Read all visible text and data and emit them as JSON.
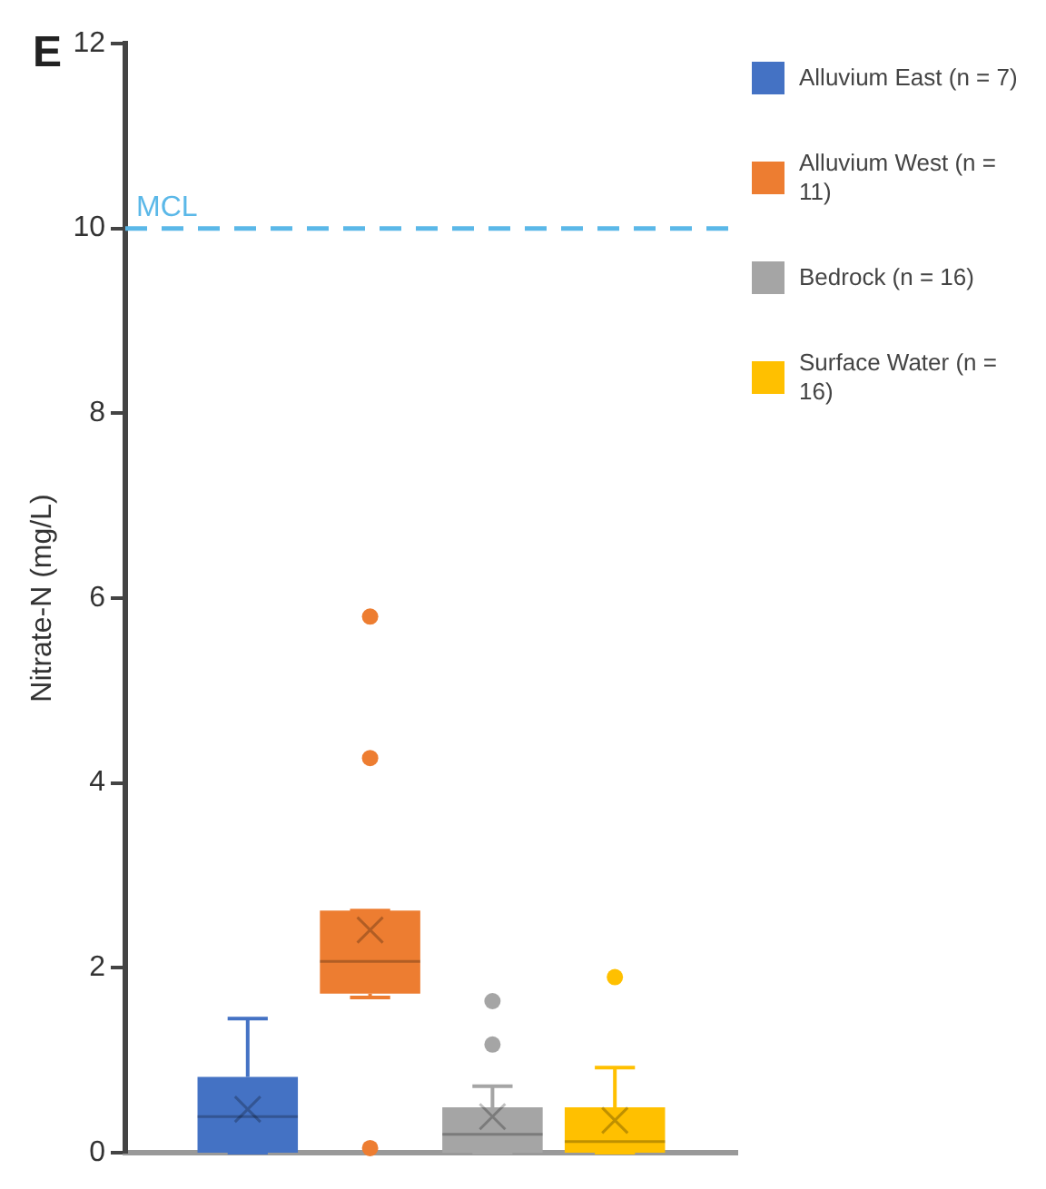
{
  "chart_data": {
    "type": "box",
    "ylabel": "Nitrate-N (mg/L)",
    "annotations": [
      "E"
    ],
    "categories": [
      null
    ],
    "series": [
      {
        "name": "Alluvium East (n = 7)",
        "color": "#4472c4",
        "boxes": [
          {
            "low": 0,
            "q1": 0,
            "median": 0.39,
            "q3": 0.82,
            "high": 1.45,
            "mean": 0.47
          }
        ]
      },
      {
        "name": "Alluvium West (n = 11)",
        "color": "#ed7d31",
        "boxes": [
          {
            "low": 1.68,
            "q1": 1.72,
            "median": 2.07,
            "q3": 2.62,
            "high": 2.62,
            "mean": 2.41,
            "outliers": [
              5.8,
              4.27,
              0.05
            ]
          }
        ]
      },
      {
        "name": "Bedrock (n = 16)",
        "color": "#a5a5a5",
        "boxes": [
          {
            "low": 0,
            "q1": 0,
            "median": 0.2,
            "q3": 0.49,
            "high": 0.72,
            "mean": 0.39,
            "outliers": [
              1.64,
              1.17
            ]
          }
        ]
      },
      {
        "name": "Surface Water (n = 16)",
        "color": "#ffc000",
        "boxes": [
          {
            "low": 0,
            "q1": 0,
            "median": 0.12,
            "q3": 0.49,
            "high": 0.92,
            "mean": 0.35,
            "outliers": [
              1.9
            ]
          }
        ]
      }
    ],
    "ref_lines": [
      {
        "axis": "y",
        "value": 10,
        "label": "MCL",
        "color": "#5bb8e8",
        "line_style": "dashed"
      }
    ],
    "ylim": [
      0,
      12
    ],
    "yticks": [
      0,
      2,
      4,
      6,
      8,
      10,
      12
    ],
    "grid": false,
    "legend": "right",
    "tick_labels": "y"
  }
}
